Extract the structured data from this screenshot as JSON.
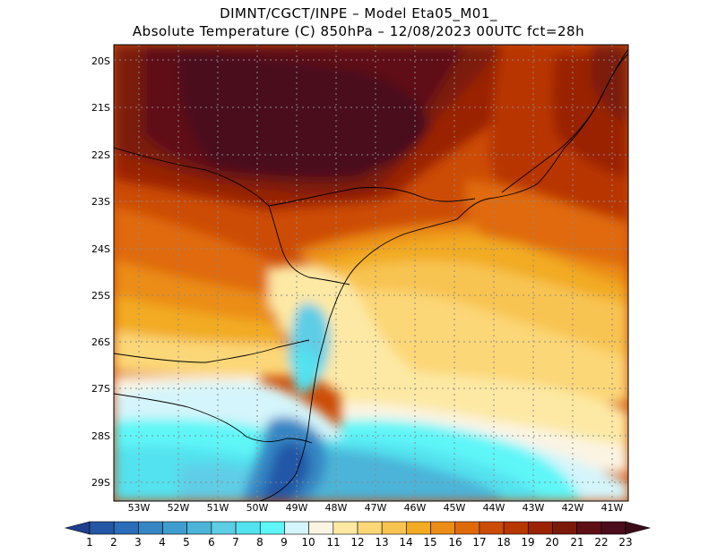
{
  "header": {
    "line1": "DIMNT/CGCT/INPE –   Model Eta05_M01_",
    "line2": "Absolute Temperature (C) 850hPa –   12/08/2023 00UTC fct=28h"
  },
  "map": {
    "lat_labels": [
      "20S",
      "21S",
      "22S",
      "23S",
      "24S",
      "25S",
      "26S",
      "27S",
      "28S",
      "29S"
    ],
    "lon_labels": [
      "53W",
      "52W",
      "51W",
      "50W",
      "49W",
      "48W",
      "47W",
      "46W",
      "45W",
      "44W",
      "43W",
      "42W",
      "41W"
    ],
    "field_description": "temperature at 850hPa, warm interior (>22C) north, cool (<9C) south coast"
  },
  "colorbar": {
    "labels": [
      "1",
      "2",
      "3",
      "4",
      "5",
      "6",
      "7",
      "8",
      "9",
      "10",
      "11",
      "12",
      "13",
      "14",
      "15",
      "16",
      "17",
      "18",
      "19",
      "20",
      "21",
      "22",
      "23"
    ],
    "colors": [
      "#1e3f8e",
      "#2456a6",
      "#2b6db8",
      "#3686c4",
      "#3f9ccf",
      "#4cb4d8",
      "#5ecde6",
      "#53e2ef",
      "#5ff6f8",
      "#d4f5fb",
      "#fbf4e3",
      "#fde9a4",
      "#fcd777",
      "#f8c451",
      "#f2ab22",
      "#eb8d17",
      "#e06a0a",
      "#cc4c05",
      "#b83600",
      "#9a2304",
      "#7c1a0a",
      "#5e0f16",
      "#4a0b1a",
      "#3a0c1a"
    ]
  }
}
